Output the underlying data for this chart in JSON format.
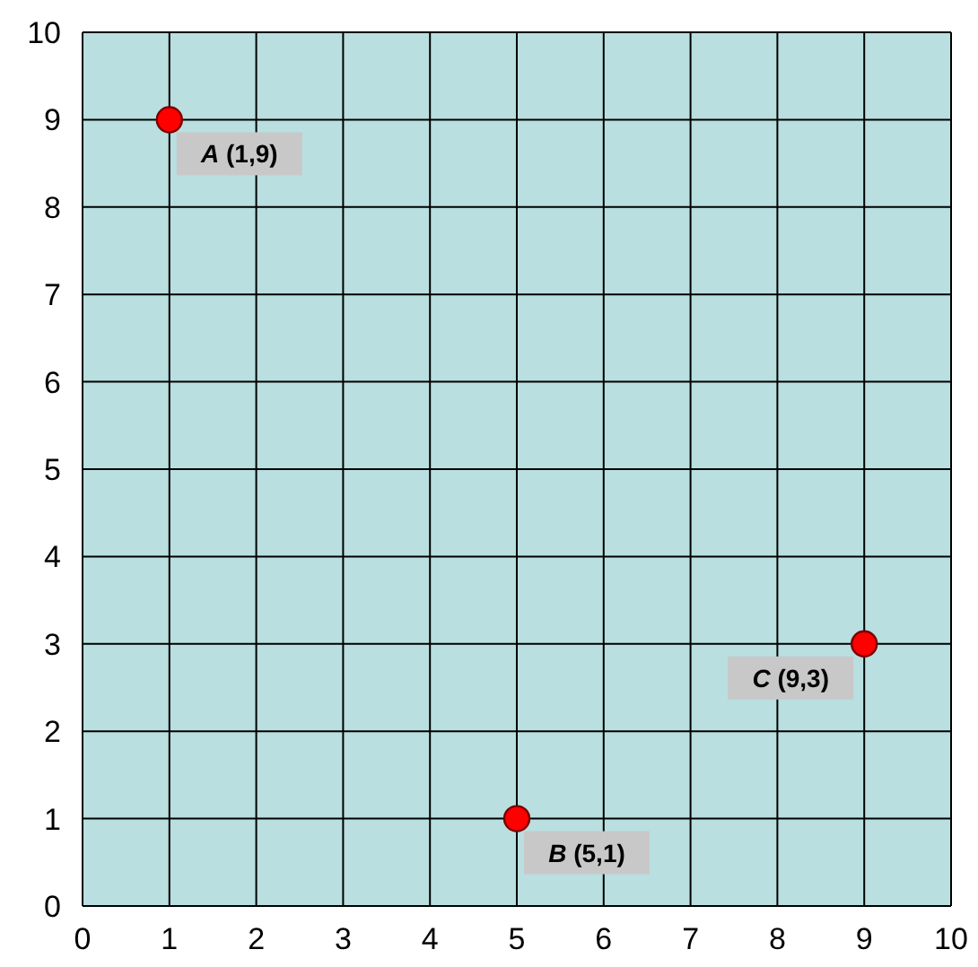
{
  "chart_data": {
    "type": "scatter",
    "x": [
      1,
      5,
      9
    ],
    "series": [
      {
        "color": "#ff0000",
        "values": [
          9,
          1,
          3
        ]
      }
    ],
    "marker": "circle",
    "xlim": [
      0,
      10
    ],
    "xticks": [
      0,
      1,
      2,
      3,
      4,
      5,
      6,
      7,
      8,
      9,
      10
    ],
    "ylim": [
      0,
      10
    ],
    "yticks": [
      0,
      1,
      2,
      3,
      4,
      5,
      6,
      7,
      8,
      9,
      10
    ],
    "grid": true,
    "annotations": [
      {
        "text": "A (1,9)",
        "x": 1,
        "y": 9
      },
      {
        "text": "B (5,1)",
        "x": 5,
        "y": 1
      },
      {
        "text": "C (9,3)",
        "x": 9,
        "y": 3
      }
    ]
  }
}
